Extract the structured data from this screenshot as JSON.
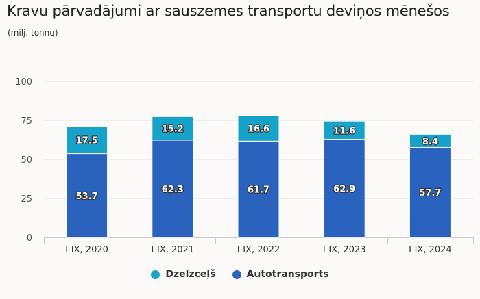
{
  "title": "Kravu pārvadājumi ar sauszemes transportu deviņos mēnešos",
  "subtitle": "(milj. tonnu)",
  "chart_data": {
    "type": "bar",
    "stacked": true,
    "title": "Kravu pārvadājumi ar sauszemes transportu deviņos mēnešos",
    "subtitle": "(milj. tonnu)",
    "xlabel": "",
    "ylabel": "",
    "categories": [
      "I-IX, 2020",
      "I-IX, 2021",
      "I-IX, 2022",
      "I-IX, 2023",
      "I-IX, 2024"
    ],
    "series": [
      {
        "name": "Autotransports",
        "color": "#2a63bd",
        "values": [
          53.7,
          62.3,
          61.7,
          62.9,
          57.7
        ]
      },
      {
        "name": "Dzelzceļš",
        "color": "#16a2c9",
        "values": [
          17.5,
          15.2,
          16.6,
          11.6,
          8.4
        ]
      }
    ],
    "ylim": [
      0,
      100
    ],
    "yticks": [
      0,
      25,
      50,
      75,
      100
    ],
    "grid": true,
    "legend": {
      "position": "bottom-center",
      "order": [
        "Dzelzceļš",
        "Autotransports"
      ]
    }
  },
  "legend": [
    {
      "label": "Dzelzceļš",
      "color": "#16a2c9"
    },
    {
      "label": "Autotransports",
      "color": "#2a63bd"
    }
  ]
}
